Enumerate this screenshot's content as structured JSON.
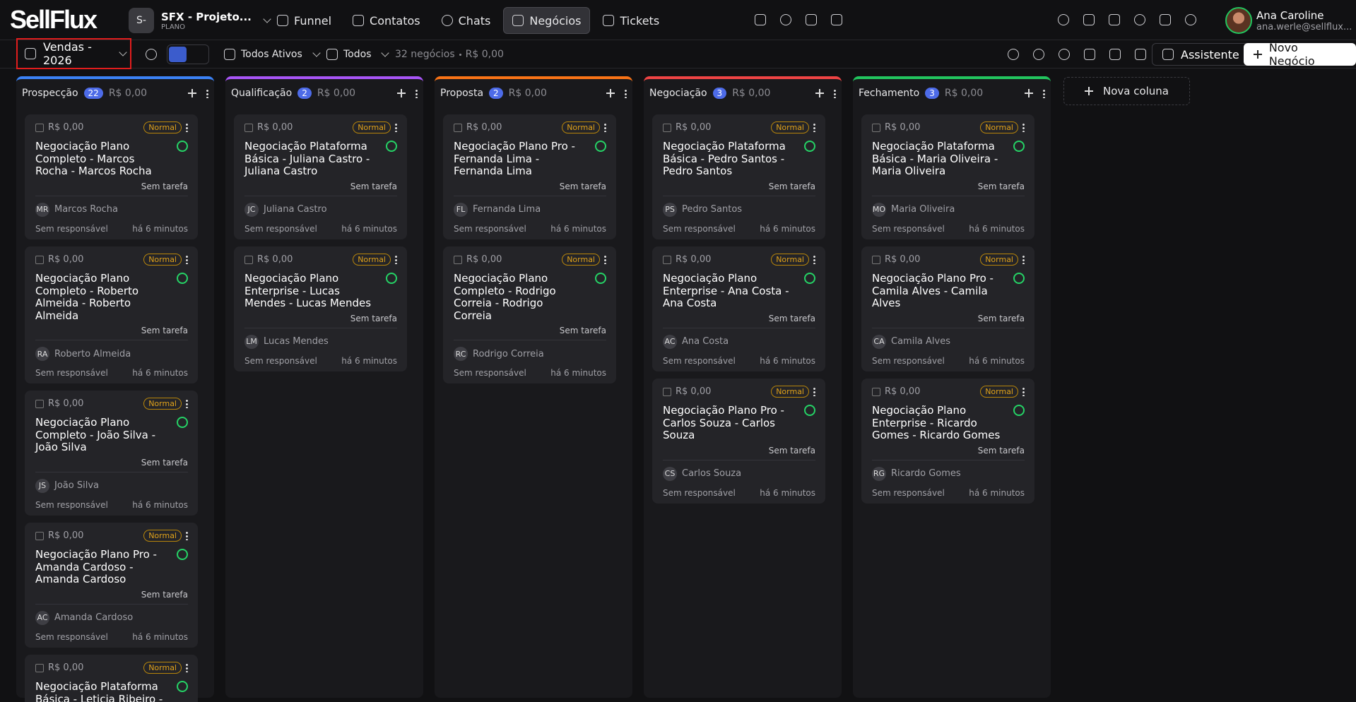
{
  "header": {
    "logo": "SellFlux",
    "workspace": {
      "initials": "S-",
      "name": "SFX - Projeto...",
      "plan": "PLANO"
    },
    "nav": [
      "Funnel",
      "Contatos",
      "Chats",
      "Negócios",
      "Tickets"
    ],
    "user": {
      "name": "Ana Caroline",
      "email": "ana.werle@sellflux..."
    }
  },
  "toolbar": {
    "pipeline": "Vendas - 2026",
    "status_filter": "Todos Ativos",
    "owner_filter": "Todos",
    "count": "32 negócios",
    "total": "R$ 0,00",
    "assistant": "Assistente",
    "new_deal": "Novo Negócio"
  },
  "board": {
    "add_column": "Nova coluna",
    "columns": [
      {
        "name": "Prospecção",
        "count": "22",
        "total": "R$ 0,00",
        "color": "#3b82f6",
        "cards": [
          {
            "value": "R$ 0,00",
            "priority": "Normal",
            "title": "Negociação Plano Completo - Marcos Rocha - Marcos Rocha",
            "task": "Sem tarefa",
            "initials": "MR",
            "contact": "Marcos Rocha",
            "owner": "Sem responsável",
            "time": "há 6 minutos"
          },
          {
            "value": "R$ 0,00",
            "priority": "Normal",
            "title": "Negociação Plano Completo - Roberto Almeida - Roberto Almeida",
            "task": "Sem tarefa",
            "initials": "RA",
            "contact": "Roberto Almeida",
            "owner": "Sem responsável",
            "time": "há 6 minutos"
          },
          {
            "value": "R$ 0,00",
            "priority": "Normal",
            "title": "Negociação Plano Completo - João Silva - João Silva",
            "task": "Sem tarefa",
            "initials": "JS",
            "contact": "João Silva",
            "owner": "Sem responsável",
            "time": "há 6 minutos"
          },
          {
            "value": "R$ 0,00",
            "priority": "Normal",
            "title": "Negociação Plano Pro - Amanda Cardoso - Amanda Cardoso",
            "task": "Sem tarefa",
            "initials": "AC",
            "contact": "Amanda Cardoso",
            "owner": "Sem responsável",
            "time": "há 6 minutos"
          },
          {
            "value": "R$ 0,00",
            "priority": "Normal",
            "title": "Negociação Plataforma Básica - Leticia Ribeiro - Leticia Ribeiro"
          }
        ]
      },
      {
        "name": "Qualificação",
        "count": "2",
        "total": "R$ 0,00",
        "color": "#a855f7",
        "cards": [
          {
            "value": "R$ 0,00",
            "priority": "Normal",
            "title": "Negociação Plataforma Básica - Juliana Castro - Juliana Castro",
            "task": "Sem tarefa",
            "initials": "JC",
            "contact": "Juliana Castro",
            "owner": "Sem responsável",
            "time": "há 6 minutos"
          },
          {
            "value": "R$ 0,00",
            "priority": "Normal",
            "title": "Negociação Plano Enterprise - Lucas Mendes - Lucas Mendes",
            "task": "Sem tarefa",
            "initials": "LM",
            "contact": "Lucas Mendes",
            "owner": "Sem responsável",
            "time": "há 6 minutos"
          }
        ]
      },
      {
        "name": "Proposta",
        "count": "2",
        "total": "R$ 0,00",
        "color": "#f97316",
        "cards": [
          {
            "value": "R$ 0,00",
            "priority": "Normal",
            "title": "Negociação Plano Pro - Fernanda Lima - Fernanda Lima",
            "task": "Sem tarefa",
            "initials": "FL",
            "contact": "Fernanda Lima",
            "owner": "Sem responsável",
            "time": "há 6 minutos"
          },
          {
            "value": "R$ 0,00",
            "priority": "Normal",
            "title": "Negociação Plano Completo - Rodrigo Correia - Rodrigo Correia",
            "task": "Sem tarefa",
            "initials": "RC",
            "contact": "Rodrigo Correia",
            "owner": "Sem responsável",
            "time": "há 6 minutos"
          }
        ]
      },
      {
        "name": "Negociação",
        "count": "3",
        "total": "R$ 0,00",
        "color": "#ef4444",
        "cards": [
          {
            "value": "R$ 0,00",
            "priority": "Normal",
            "title": "Negociação Plataforma Básica - Pedro Santos - Pedro Santos",
            "task": "Sem tarefa",
            "initials": "PS",
            "contact": "Pedro Santos",
            "owner": "Sem responsável",
            "time": "há 6 minutos"
          },
          {
            "value": "R$ 0,00",
            "priority": "Normal",
            "title": "Negociação Plano Enterprise - Ana Costa - Ana Costa",
            "task": "Sem tarefa",
            "initials": "AC",
            "contact": "Ana Costa",
            "owner": "Sem responsável",
            "time": "há 6 minutos"
          },
          {
            "value": "R$ 0,00",
            "priority": "Normal",
            "title": "Negociação Plano Pro - Carlos Souza - Carlos Souza",
            "task": "Sem tarefa",
            "initials": "CS",
            "contact": "Carlos Souza",
            "owner": "Sem responsável",
            "time": "há 6 minutos"
          }
        ]
      },
      {
        "name": "Fechamento",
        "count": "3",
        "total": "R$ 0,00",
        "color": "#22c55e",
        "cards": [
          {
            "value": "R$ 0,00",
            "priority": "Normal",
            "title": "Negociação Plataforma Básica - Maria Oliveira - Maria Oliveira",
            "task": "Sem tarefa",
            "initials": "MO",
            "contact": "Maria Oliveira",
            "owner": "Sem responsável",
            "time": "há 6 minutos"
          },
          {
            "value": "R$ 0,00",
            "priority": "Normal",
            "title": "Negociação Plano Pro - Camila Alves - Camila Alves",
            "task": "Sem tarefa",
            "initials": "CA",
            "contact": "Camila Alves",
            "owner": "Sem responsável",
            "time": "há 6 minutos"
          },
          {
            "value": "R$ 0,00",
            "priority": "Normal",
            "title": "Negociação Plano Enterprise - Ricardo Gomes - Ricardo Gomes",
            "task": "Sem tarefa",
            "initials": "RG",
            "contact": "Ricardo Gomes",
            "owner": "Sem responsável",
            "time": "há 6 minutos"
          }
        ]
      }
    ]
  }
}
